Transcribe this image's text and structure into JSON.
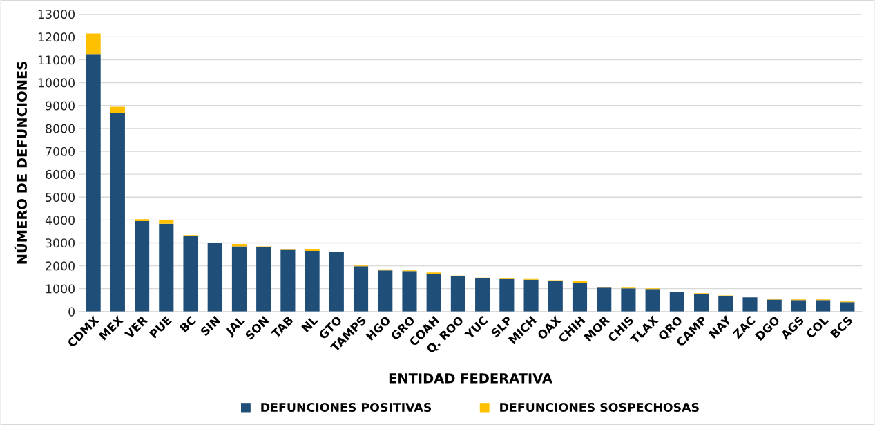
{
  "chart_data": {
    "type": "bar",
    "stacked": true,
    "xlabel": "ENTIDAD FEDERATIVA",
    "ylabel": "NÚMERO DE DEFUNCIONES",
    "categories": [
      "CDMX",
      "MEX",
      "VER",
      "PUE",
      "BC",
      "SIN",
      "JAL",
      "SON",
      "TAB",
      "NL",
      "GTO",
      "TAMPS",
      "HGO",
      "GRO",
      "COAH",
      "Q. ROO",
      "YUC",
      "SLP",
      "MICH",
      "OAX",
      "CHIH",
      "MOR",
      "CHIS",
      "TLAX",
      "QRO",
      "CAMP",
      "NAY",
      "ZAC",
      "DGO",
      "AGS",
      "COL",
      "BCS"
    ],
    "series": [
      {
        "name": "DEFUNCIONES POSITIVAS",
        "color": "#1f4e79",
        "values": [
          11250,
          8670,
          3950,
          3840,
          3310,
          2980,
          2850,
          2820,
          2700,
          2650,
          2600,
          1980,
          1800,
          1770,
          1650,
          1540,
          1450,
          1420,
          1390,
          1330,
          1240,
          1040,
          1010,
          980,
          870,
          780,
          670,
          620,
          520,
          500,
          500,
          410
        ]
      },
      {
        "name": "DEFUNCIONES SOSPECHOSAS",
        "color": "#ffc000",
        "values": [
          900,
          280,
          80,
          160,
          30,
          30,
          100,
          30,
          40,
          60,
          20,
          30,
          40,
          30,
          60,
          30,
          30,
          30,
          30,
          40,
          100,
          30,
          30,
          30,
          null,
          20,
          30,
          null,
          30,
          30,
          30,
          30
        ]
      }
    ],
    "ylim": [
      0,
      13000
    ],
    "yticks": [
      0,
      1000,
      2000,
      3000,
      4000,
      5000,
      6000,
      7000,
      8000,
      9000,
      10000,
      11000,
      12000,
      13000
    ],
    "grid": "y",
    "legend": "bottom"
  }
}
